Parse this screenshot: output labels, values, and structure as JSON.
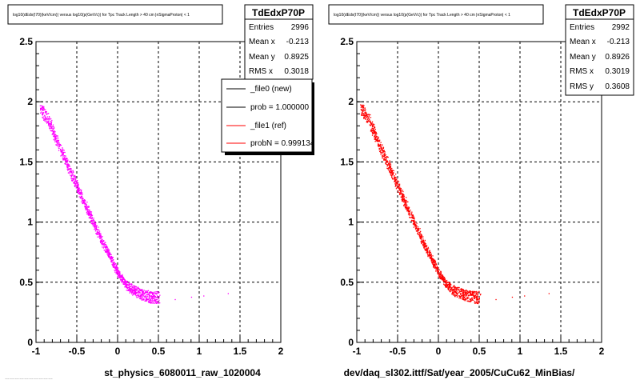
{
  "colors": {
    "magenta": "#ff00ff",
    "red": "#ff0000",
    "black": "#000000"
  },
  "footer_text": "…………………………",
  "chart_data": [
    {
      "type": "scatter",
      "title": "log10(dEdx(I70)(keV/cm)) versus log10(p(GeV/c)) for Tpc Track Length > 40 cm |nSigmaProton| < 1",
      "xlabel": "st_physics_6080011_raw_1020004",
      "xlim": [
        -1,
        2
      ],
      "ylim": [
        0,
        2.5
      ],
      "xticks": [
        "-1",
        "-0.5",
        "0",
        "0.5",
        "1",
        "1.5",
        "2"
      ],
      "yticks": [
        "0",
        "0.5",
        "1",
        "1.5",
        "2",
        "2.5"
      ],
      "grid": true,
      "color": "#ff00ff",
      "band": [
        [
          -0.95,
          1.95
        ],
        [
          -0.85,
          1.85
        ],
        [
          -0.75,
          1.68
        ],
        [
          -0.6,
          1.45
        ],
        [
          -0.5,
          1.3
        ],
        [
          -0.4,
          1.15
        ],
        [
          -0.3,
          1.0
        ],
        [
          -0.2,
          0.85
        ],
        [
          -0.1,
          0.72
        ],
        [
          0.0,
          0.58
        ],
        [
          0.1,
          0.48
        ],
        [
          0.2,
          0.43
        ],
        [
          0.3,
          0.4
        ],
        [
          0.4,
          0.38
        ],
        [
          0.6,
          0.37
        ]
      ],
      "stats": {
        "name": "TdEdxP70P",
        "rows": [
          [
            "Entries",
            "2996"
          ],
          [
            "Mean x",
            "-0.213"
          ],
          [
            "Mean y",
            "0.8925"
          ],
          [
            "RMS x",
            "0.3018"
          ]
        ]
      },
      "legend": {
        "entries": [
          {
            "label": "_file0 (new)",
            "color": "#000000"
          },
          {
            "label": "prob = 1.000000",
            "color": "#000000"
          },
          {
            "label": "_file1 (ref)",
            "color": "#ff0000"
          },
          {
            "label": "probN = 0.999134",
            "color": "#ff0000"
          }
        ]
      }
    },
    {
      "type": "scatter",
      "title": "log10(dEdx(I70)(keV/cm)) versus log10(p(GeV/c)) for Tpc Track Length > 40 cm |nSigmaProton| < 1",
      "xlabel": "dev/daq_sl302.ittf/Sat/year_2005/CuCu62_MinBias/",
      "xlim": [
        -1,
        2
      ],
      "ylim": [
        0,
        2.5
      ],
      "xticks": [
        "-1",
        "-0.5",
        "0",
        "0.5",
        "1",
        "1.5",
        "2"
      ],
      "yticks": [
        "0",
        "0.5",
        "1",
        "1.5",
        "2",
        "2.5"
      ],
      "grid": true,
      "color": "#ff0000",
      "band": [
        [
          -0.95,
          1.95
        ],
        [
          -0.85,
          1.85
        ],
        [
          -0.75,
          1.68
        ],
        [
          -0.6,
          1.45
        ],
        [
          -0.5,
          1.3
        ],
        [
          -0.4,
          1.15
        ],
        [
          -0.3,
          1.0
        ],
        [
          -0.2,
          0.85
        ],
        [
          -0.1,
          0.72
        ],
        [
          0.0,
          0.58
        ],
        [
          0.1,
          0.48
        ],
        [
          0.2,
          0.43
        ],
        [
          0.3,
          0.4
        ],
        [
          0.4,
          0.38
        ],
        [
          0.6,
          0.37
        ]
      ],
      "stats": {
        "name": "TdEdxP70P",
        "rows": [
          [
            "Entries",
            "2992"
          ],
          [
            "Mean x",
            "-0.213"
          ],
          [
            "Mean y",
            "0.8926"
          ],
          [
            "RMS x",
            "0.3019"
          ],
          [
            "RMS y",
            "0.3608"
          ]
        ]
      }
    }
  ]
}
